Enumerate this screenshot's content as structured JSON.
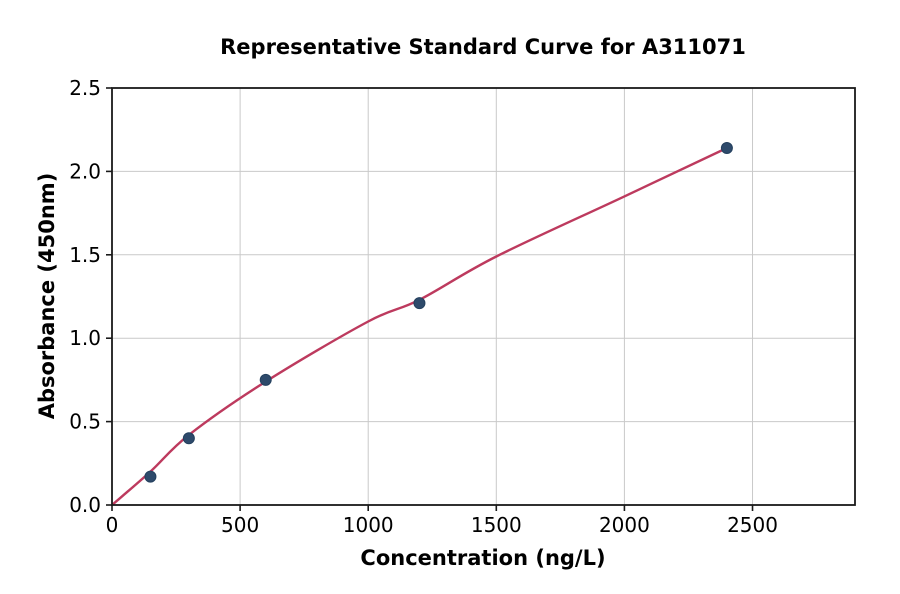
{
  "chart_data": {
    "type": "scatter",
    "title": "Representative Standard Curve for A311071",
    "xlabel": "Concentration (ng/L)",
    "ylabel": "Absorbance (450nm)",
    "xlim": [
      0,
      2900
    ],
    "ylim": [
      0,
      2.5
    ],
    "x_ticks": [
      0,
      500,
      1000,
      1500,
      2000,
      2500
    ],
    "x_tick_labels": [
      "0",
      "500",
      "1000",
      "1500",
      "2000",
      "2500"
    ],
    "y_ticks": [
      0.0,
      0.5,
      1.0,
      1.5,
      2.0,
      2.5
    ],
    "y_tick_labels": [
      "0.0",
      "0.5",
      "1.0",
      "1.5",
      "2.0",
      "2.5"
    ],
    "grid": true,
    "legend": "none",
    "points": [
      {
        "x": 150,
        "y": 0.17
      },
      {
        "x": 300,
        "y": 0.4
      },
      {
        "x": 600,
        "y": 0.75
      },
      {
        "x": 1200,
        "y": 1.21
      },
      {
        "x": 2400,
        "y": 2.14
      }
    ],
    "fit_curve": [
      [
        0,
        0.0
      ],
      [
        150,
        0.2
      ],
      [
        300,
        0.42
      ],
      [
        600,
        0.74
      ],
      [
        1000,
        1.1
      ],
      [
        1200,
        1.23
      ],
      [
        1500,
        1.49
      ],
      [
        2000,
        1.85
      ],
      [
        2400,
        2.14
      ]
    ],
    "colors": {
      "curve": "#bd3a5e",
      "point_fill": "#2e4a6b",
      "point_edge": "#24405e",
      "grid": "#c9c9c9",
      "spine": "#1a1a1a",
      "text": "#000000",
      "background": "#ffffff"
    }
  }
}
